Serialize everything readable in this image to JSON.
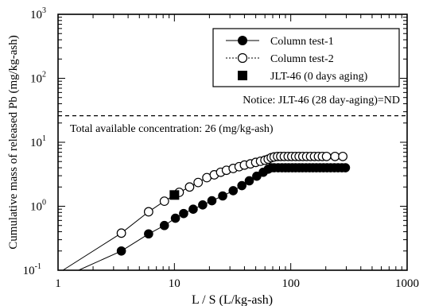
{
  "chart_data": {
    "type": "scatter",
    "xlabel": "L / S (L/kg-ash)",
    "ylabel": "Cumulative mass of released Pb (mg/kg-ash)",
    "x_scale": "log",
    "y_scale": "log",
    "xlim": [
      1,
      1000
    ],
    "ylim": [
      0.1,
      1000
    ],
    "x_ticks": [
      {
        "value": 1,
        "label": "1"
      },
      {
        "value": 10,
        "label": "10"
      },
      {
        "value": 100,
        "label": "100"
      },
      {
        "value": 1000,
        "label": "1000"
      }
    ],
    "y_ticks": [
      {
        "value": 0.1,
        "base": "10",
        "exp": "-1"
      },
      {
        "value": 1,
        "base": "10",
        "exp": "0"
      },
      {
        "value": 10,
        "base": "10",
        "exp": "1"
      },
      {
        "value": 100,
        "base": "10",
        "exp": "2"
      },
      {
        "value": 1000,
        "base": "10",
        "exp": "3"
      }
    ],
    "grid": false,
    "legend_position": "top-right",
    "series": [
      {
        "name": "Column test-1",
        "marker": "filled-circle",
        "line": "solid",
        "points": [
          [
            1.5,
            0.1
          ],
          [
            3.5,
            0.2
          ],
          [
            6,
            0.37
          ],
          [
            8.2,
            0.5
          ],
          [
            10.2,
            0.65
          ],
          [
            12,
            0.77
          ],
          [
            14.5,
            0.9
          ],
          [
            17.5,
            1.05
          ],
          [
            21,
            1.22
          ],
          [
            26,
            1.45
          ],
          [
            32,
            1.75
          ],
          [
            38,
            2.1
          ],
          [
            44,
            2.5
          ],
          [
            51,
            2.95
          ],
          [
            58,
            3.4
          ],
          [
            64,
            3.8
          ],
          [
            68,
            4.0
          ],
          [
            72,
            4.0
          ],
          [
            78,
            4.0
          ],
          [
            84,
            4.0
          ],
          [
            90,
            4.0
          ],
          [
            96,
            4.0
          ],
          [
            103,
            4.0
          ],
          [
            110,
            4.0
          ],
          [
            118,
            4.0
          ],
          [
            126,
            4.0
          ],
          [
            135,
            4.0
          ],
          [
            145,
            4.0
          ],
          [
            155,
            4.0
          ],
          [
            166,
            4.0
          ],
          [
            178,
            4.0
          ],
          [
            191,
            4.0
          ],
          [
            205,
            4.0
          ],
          [
            220,
            4.0
          ],
          [
            237,
            4.0
          ],
          [
            255,
            4.0
          ],
          [
            275,
            4.0
          ],
          [
            295,
            4.0
          ]
        ]
      },
      {
        "name": "Column test-2",
        "marker": "open-circle",
        "line": "solid",
        "points": [
          [
            1.1,
            0.1
          ],
          [
            3.5,
            0.38
          ],
          [
            6,
            0.82
          ],
          [
            8.2,
            1.2
          ],
          [
            11,
            1.65
          ],
          [
            13.5,
            2.0
          ],
          [
            16,
            2.35
          ],
          [
            19,
            2.8
          ],
          [
            22,
            3.1
          ],
          [
            25,
            3.4
          ],
          [
            28,
            3.65
          ],
          [
            32,
            3.9
          ],
          [
            36,
            4.15
          ],
          [
            40,
            4.4
          ],
          [
            45,
            4.6
          ],
          [
            50,
            4.85
          ],
          [
            55,
            5.05
          ],
          [
            60,
            5.25
          ],
          [
            64,
            5.45
          ],
          [
            68,
            5.75
          ],
          [
            72,
            5.9
          ],
          [
            77,
            6.0
          ],
          [
            82,
            6.0
          ],
          [
            88,
            6.0
          ],
          [
            95,
            6.0
          ],
          [
            102,
            6.0
          ],
          [
            110,
            6.0
          ],
          [
            118,
            6.0
          ],
          [
            127,
            6.0
          ],
          [
            137,
            6.0
          ],
          [
            148,
            6.0
          ],
          [
            160,
            6.0
          ],
          [
            173,
            6.0
          ],
          [
            187,
            6.0
          ],
          [
            203,
            6.0
          ],
          [
            240,
            6.0
          ],
          [
            280,
            6.0
          ]
        ]
      },
      {
        "name": "JLT-46 (0 days aging)",
        "marker": "filled-square",
        "line": "none",
        "points": [
          [
            10,
            1.5
          ]
        ]
      }
    ],
    "reference_lines": [
      {
        "y": 26,
        "style": "dashed",
        "label": "Total available concentration: 26 (mg/kg-ash)"
      }
    ],
    "annotations": [
      "Notice: JLT-46 (28 day-aging)=ND"
    ]
  }
}
